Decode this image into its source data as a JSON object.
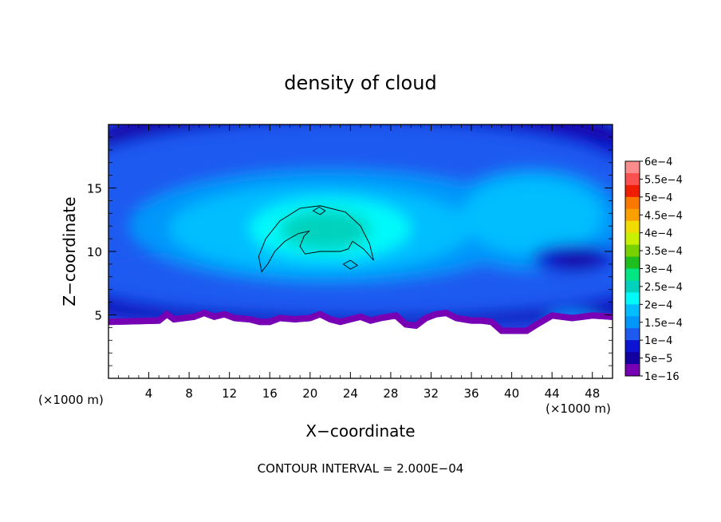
{
  "chart_data": {
    "type": "heatmap",
    "title": "density of cloud",
    "xlabel": "X−coordinate",
    "ylabel": "Z−coordinate",
    "x_unit_left": "(×1000 m)",
    "x_unit_right": "(×1000 m)",
    "xlim": [
      0,
      50
    ],
    "ylim": [
      0,
      20
    ],
    "xticks": [
      4,
      8,
      12,
      16,
      20,
      24,
      28,
      32,
      36,
      40,
      44,
      48
    ],
    "yticks": [
      5,
      10,
      15
    ],
    "footer": "CONTOUR INTERVAL = 2.000E−04",
    "colorbar": {
      "labels": [
        "6e−4",
        "5.5e−4",
        "5e−4",
        "4.5e−4",
        "4e−4",
        "3.5e−4",
        "3e−4",
        "2.5e−4",
        "2e−4",
        "1.5e−4",
        "1e−4",
        "5e−5",
        "1e−16"
      ],
      "colors": [
        "#fa8c8c",
        "#fa5050",
        "#f01e00",
        "#fa7800",
        "#faa000",
        "#f0dc00",
        "#c8f000",
        "#78d200",
        "#1ebe1e",
        "#00e682",
        "#00d2be",
        "#00fafa",
        "#00beff",
        "#0096fa",
        "#1e5af0",
        "#0a14d2",
        "#1400a0",
        "#7800b4"
      ]
    },
    "terrain_height": [
      [
        0,
        4.2
      ],
      [
        5,
        4.3
      ],
      [
        5.8,
        4.8
      ],
      [
        6.5,
        4.4
      ],
      [
        7.5,
        4.5
      ],
      [
        8.5,
        4.6
      ],
      [
        9.5,
        4.9
      ],
      [
        10.5,
        4.6
      ],
      [
        11.5,
        4.8
      ],
      [
        12.5,
        4.5
      ],
      [
        14,
        4.4
      ],
      [
        15,
        4.2
      ],
      [
        16,
        4.2
      ],
      [
        17,
        4.5
      ],
      [
        18.5,
        4.4
      ],
      [
        20,
        4.5
      ],
      [
        21,
        4.8
      ],
      [
        22,
        4.4
      ],
      [
        23,
        4.2
      ],
      [
        24,
        4.4
      ],
      [
        25,
        4.6
      ],
      [
        26,
        4.3
      ],
      [
        27,
        4.5
      ],
      [
        28.5,
        4.7
      ],
      [
        29.5,
        4.0
      ],
      [
        30.5,
        3.9
      ],
      [
        31.5,
        4.5
      ],
      [
        32.5,
        4.8
      ],
      [
        33.5,
        4.9
      ],
      [
        34.5,
        4.5
      ],
      [
        36,
        4.3
      ],
      [
        37,
        4.3
      ],
      [
        38,
        4.2
      ],
      [
        39,
        3.5
      ],
      [
        40,
        3.5
      ],
      [
        41.5,
        3.5
      ],
      [
        42.5,
        4.0
      ],
      [
        44,
        4.7
      ],
      [
        46,
        4.5
      ],
      [
        48,
        4.7
      ],
      [
        50,
        4.6
      ]
    ],
    "blobs": [
      {
        "level": 17,
        "cx": 12,
        "cy": 19.6,
        "rx": 9,
        "ry": 1.8
      },
      {
        "level": 17,
        "cx": 20,
        "cy": 19.8,
        "rx": 4,
        "ry": 1.0
      },
      {
        "level": 16,
        "cx": 25,
        "cy": 18.8,
        "rx": 26,
        "ry": 3.4
      },
      {
        "level": 15,
        "cx": 25,
        "cy": 17.7,
        "rx": 26,
        "ry": 3.0
      },
      {
        "level": 14,
        "cx": 24,
        "cy": 16.2,
        "rx": 27,
        "ry": 4.0
      },
      {
        "level": 16,
        "cx": 25,
        "cy": 5.7,
        "rx": 27,
        "ry": 1.6
      },
      {
        "level": 15,
        "cx": 25,
        "cy": 6.5,
        "rx": 27,
        "ry": 1.9
      },
      {
        "level": 14,
        "cx": 25,
        "cy": 7.6,
        "rx": 27,
        "ry": 2.6
      },
      {
        "level": 13,
        "cx": 22,
        "cy": 12.0,
        "rx": 20,
        "ry": 4.5
      },
      {
        "level": 13,
        "cx": 42,
        "cy": 12.5,
        "rx": 9,
        "ry": 4.0
      },
      {
        "level": 12,
        "cx": 21,
        "cy": 11.8,
        "rx": 15,
        "ry": 3.4
      },
      {
        "level": 12,
        "cx": 42,
        "cy": 12.8,
        "rx": 7,
        "ry": 3.0
      },
      {
        "level": 11,
        "cx": 22,
        "cy": 11.8,
        "rx": 8,
        "ry": 2.4
      },
      {
        "level": 10,
        "cx": 21.5,
        "cy": 11.7,
        "rx": 4.5,
        "ry": 1.6
      },
      {
        "level": 15,
        "cx": 46,
        "cy": 9.5,
        "rx": 4,
        "ry": 1.1
      },
      {
        "level": 16,
        "cx": 46.5,
        "cy": 9.3,
        "rx": 2.5,
        "ry": 0.6
      },
      {
        "level": 13,
        "cx": 46,
        "cy": 4.8,
        "rx": 2.5,
        "ry": 0.45
      }
    ],
    "contours": [
      [
        [
          15.2,
          8.4
        ],
        [
          14.9,
          9.6
        ],
        [
          15.6,
          11.0
        ],
        [
          17.0,
          12.4
        ],
        [
          19.0,
          13.4
        ],
        [
          21.0,
          13.6
        ],
        [
          23.5,
          13.1
        ],
        [
          25.0,
          12.0
        ],
        [
          25.9,
          10.6
        ],
        [
          26.3,
          9.3
        ],
        [
          25.3,
          10.2
        ],
        [
          24.2,
          10.8
        ],
        [
          23.8,
          10.2
        ],
        [
          23.0,
          10.0
        ],
        [
          21.0,
          10.0
        ],
        [
          19.5,
          9.8
        ],
        [
          19.0,
          10.4
        ],
        [
          19.4,
          11.2
        ],
        [
          19.9,
          11.6
        ],
        [
          18.8,
          11.4
        ],
        [
          17.5,
          10.8
        ],
        [
          16.5,
          10.0
        ],
        [
          15.8,
          9.0
        ],
        [
          15.2,
          8.4
        ]
      ],
      [
        [
          20.3,
          13.2
        ],
        [
          20.9,
          13.5
        ],
        [
          21.5,
          13.2
        ],
        [
          21.0,
          12.9
        ],
        [
          20.3,
          13.2
        ]
      ],
      [
        [
          23.3,
          9.0
        ],
        [
          24.0,
          9.3
        ],
        [
          24.7,
          8.9
        ],
        [
          24.0,
          8.6
        ],
        [
          23.3,
          9.0
        ]
      ]
    ]
  }
}
